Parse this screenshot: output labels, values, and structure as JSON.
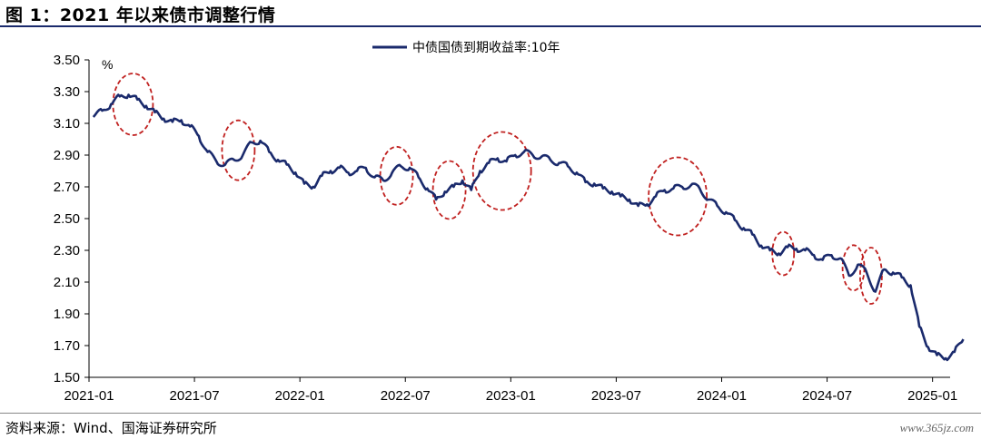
{
  "header": {
    "title": "图 1：2021 年以来债市调整行情"
  },
  "footer": {
    "source": "资料来源：Wind、国海证券研究所",
    "watermark": "www.365jz.com"
  },
  "chart_data": {
    "type": "line",
    "title": "",
    "xlabel": "",
    "ylabel": "%",
    "ylim": [
      1.5,
      3.5
    ],
    "yticks": [
      "3.50",
      "3.30",
      "3.10",
      "2.90",
      "2.70",
      "2.50",
      "2.30",
      "2.10",
      "1.90",
      "1.70",
      "1.50"
    ],
    "xticks": [
      "2021-01",
      "2021-07",
      "2022-01",
      "2022-07",
      "2023-01",
      "2023-07",
      "2024-01",
      "2024-07",
      "2025-01"
    ],
    "xlim": [
      "2021-01",
      "2025-02"
    ],
    "grid": false,
    "legend": "top-center",
    "series": [
      {
        "name": "中债国债到期收益率:10年",
        "color": "#1a2a6c",
        "points": [
          [
            "2021-01",
            3.14
          ],
          [
            "2021-01",
            3.18
          ],
          [
            "2021-02",
            3.22
          ],
          [
            "2021-02",
            3.27
          ],
          [
            "2021-03",
            3.28
          ],
          [
            "2021-03",
            3.25
          ],
          [
            "2021-04",
            3.21
          ],
          [
            "2021-04",
            3.17
          ],
          [
            "2021-05",
            3.13
          ],
          [
            "2021-05",
            3.11
          ],
          [
            "2021-06",
            3.12
          ],
          [
            "2021-06",
            3.08
          ],
          [
            "2021-07",
            3.02
          ],
          [
            "2021-07",
            2.92
          ],
          [
            "2021-08",
            2.86
          ],
          [
            "2021-08",
            2.84
          ],
          [
            "2021-09",
            2.87
          ],
          [
            "2021-09",
            2.9
          ],
          [
            "2021-10",
            2.98
          ],
          [
            "2021-10",
            2.99
          ],
          [
            "2021-11",
            2.92
          ],
          [
            "2021-11",
            2.87
          ],
          [
            "2021-12",
            2.84
          ],
          [
            "2021-12",
            2.79
          ],
          [
            "2022-01",
            2.72
          ],
          [
            "2022-01",
            2.7
          ],
          [
            "2022-02",
            2.77
          ],
          [
            "2022-02",
            2.8
          ],
          [
            "2022-03",
            2.82
          ],
          [
            "2022-03",
            2.79
          ],
          [
            "2022-04",
            2.8
          ],
          [
            "2022-04",
            2.82
          ],
          [
            "2022-05",
            2.76
          ],
          [
            "2022-05",
            2.74
          ],
          [
            "2022-06",
            2.79
          ],
          [
            "2022-06",
            2.83
          ],
          [
            "2022-07",
            2.82
          ],
          [
            "2022-07",
            2.76
          ],
          [
            "2022-08",
            2.69
          ],
          [
            "2022-08",
            2.62
          ],
          [
            "2022-09",
            2.67
          ],
          [
            "2022-09",
            2.7
          ],
          [
            "2022-10",
            2.74
          ],
          [
            "2022-10",
            2.68
          ],
          [
            "2022-11",
            2.8
          ],
          [
            "2022-11",
            2.85
          ],
          [
            "2022-12",
            2.88
          ],
          [
            "2022-12",
            2.86
          ],
          [
            "2023-01",
            2.9
          ],
          [
            "2023-01",
            2.92
          ],
          [
            "2023-02",
            2.9
          ],
          [
            "2023-02",
            2.89
          ],
          [
            "2023-03",
            2.87
          ],
          [
            "2023-03",
            2.85
          ],
          [
            "2023-04",
            2.83
          ],
          [
            "2023-04",
            2.79
          ],
          [
            "2023-05",
            2.73
          ],
          [
            "2023-05",
            2.72
          ],
          [
            "2023-06",
            2.69
          ],
          [
            "2023-06",
            2.67
          ],
          [
            "2023-07",
            2.64
          ],
          [
            "2023-07",
            2.62
          ],
          [
            "2023-08",
            2.58
          ],
          [
            "2023-08",
            2.59
          ],
          [
            "2023-09",
            2.64
          ],
          [
            "2023-09",
            2.68
          ],
          [
            "2023-10",
            2.69
          ],
          [
            "2023-10",
            2.7
          ],
          [
            "2023-11",
            2.71
          ],
          [
            "2023-11",
            2.69
          ],
          [
            "2023-12",
            2.62
          ],
          [
            "2023-12",
            2.58
          ],
          [
            "2024-01",
            2.54
          ],
          [
            "2024-01",
            2.49
          ],
          [
            "2024-02",
            2.44
          ],
          [
            "2024-02",
            2.4
          ],
          [
            "2024-03",
            2.33
          ],
          [
            "2024-03",
            2.3
          ],
          [
            "2024-04",
            2.28
          ],
          [
            "2024-04",
            2.32
          ],
          [
            "2024-05",
            2.31
          ],
          [
            "2024-05",
            2.3
          ],
          [
            "2024-06",
            2.27
          ],
          [
            "2024-06",
            2.24
          ],
          [
            "2024-07",
            2.27
          ],
          [
            "2024-07",
            2.25
          ],
          [
            "2024-08",
            2.14
          ],
          [
            "2024-08",
            2.21
          ],
          [
            "2024-09",
            2.16
          ],
          [
            "2024-09",
            2.04
          ],
          [
            "2024-10",
            2.18
          ],
          [
            "2024-10",
            2.16
          ],
          [
            "2024-11",
            2.13
          ],
          [
            "2024-11",
            2.08
          ],
          [
            "2024-12",
            1.82
          ],
          [
            "2024-12",
            1.69
          ],
          [
            "2025-01",
            1.64
          ],
          [
            "2025-01",
            1.62
          ],
          [
            "2025-02",
            1.66
          ],
          [
            "2025-02",
            1.74
          ]
        ]
      }
    ],
    "annotations": [
      {
        "type": "ellipse",
        "x": "2021-03",
        "y": 3.22
      },
      {
        "type": "ellipse",
        "x": "2021-09",
        "y": 2.93
      },
      {
        "type": "ellipse",
        "x": "2022-06",
        "y": 2.77
      },
      {
        "type": "ellipse",
        "x": "2022-09",
        "y": 2.68
      },
      {
        "type": "ellipse",
        "x": "2022-12",
        "y": 2.8
      },
      {
        "type": "ellipse",
        "x": "2023-10",
        "y": 2.64
      },
      {
        "type": "ellipse",
        "x": "2024-04",
        "y": 2.28
      },
      {
        "type": "ellipse",
        "x": "2024-08",
        "y": 2.19
      },
      {
        "type": "ellipse",
        "x": "2024-09",
        "y": 2.14
      }
    ]
  }
}
